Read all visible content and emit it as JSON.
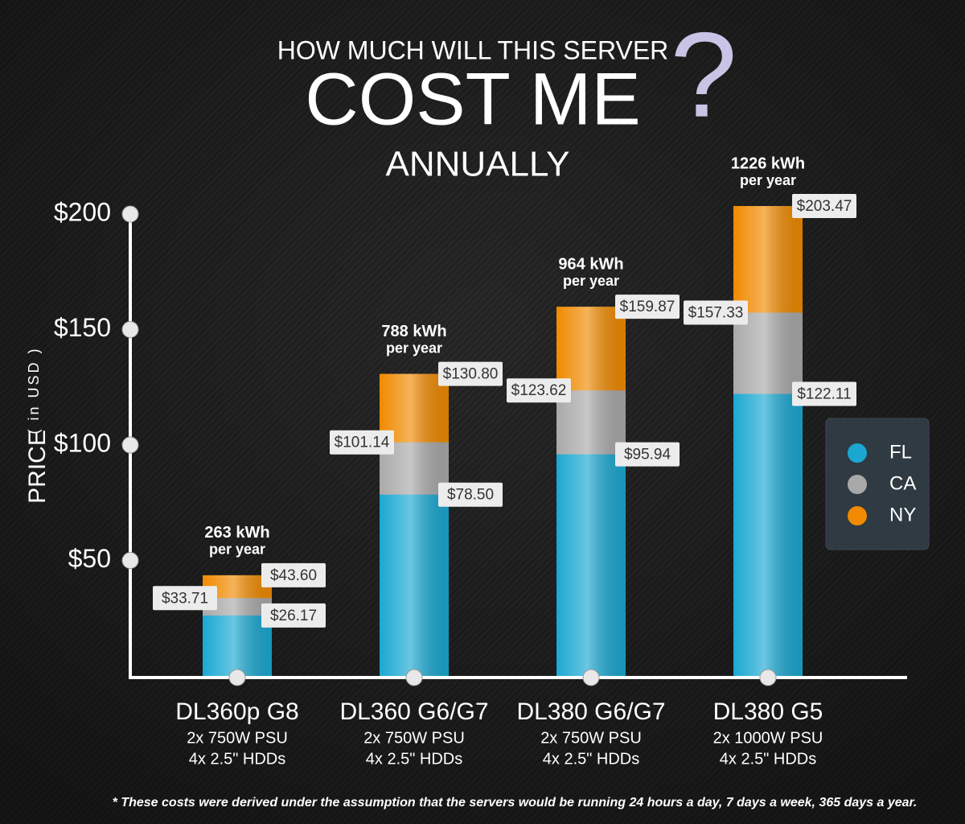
{
  "chart_data": {
    "type": "bar",
    "title_lines": [
      "HOW MUCH WILL THIS SERVER",
      "COST ME",
      "?",
      "ANNUALLY"
    ],
    "y_label": [
      "PRICE",
      "( in USD )"
    ],
    "categories": [
      "DL360p G8",
      "DL360 G6/G7",
      "DL380 G6/G7",
      "DL380 G5"
    ],
    "category_details": [
      [
        "2x 750W PSU",
        "4x 2.5\" HDDs"
      ],
      [
        "2x 750W PSU",
        "4x 2.5\" HDDs"
      ],
      [
        "2x 750W PSU",
        "4x 2.5\" HDDs"
      ],
      [
        "2x 1000W PSU",
        "4x 2.5\" HDDs"
      ]
    ],
    "annotations": [
      [
        "263 kWh",
        "per year"
      ],
      [
        "788 kWh",
        "per year"
      ],
      [
        "964 kWh",
        "per year"
      ],
      [
        "1226 kWh",
        "per year"
      ]
    ],
    "series": [
      {
        "name": "FL",
        "color": "#1aa8d2",
        "values": [
          26.17,
          78.5,
          95.94,
          122.11
        ],
        "value_labels": [
          "$26.17",
          "$78.50",
          "$95.94",
          "$122.11"
        ]
      },
      {
        "name": "CA",
        "color": "#a9a9a9",
        "values": [
          33.71,
          101.14,
          123.62,
          157.33
        ],
        "value_labels": [
          "$33.71",
          "$101.14",
          "$123.62",
          "$157.33"
        ]
      },
      {
        "name": "NY",
        "color": "#f08a00",
        "values": [
          43.6,
          130.8,
          159.87,
          203.47
        ],
        "value_labels": [
          "$43.60",
          "$130.80",
          "$159.87",
          "$203.47"
        ]
      }
    ],
    "ylim": [
      0,
      200
    ],
    "yticks": [
      {
        "value": 50,
        "label": "$50"
      },
      {
        "value": 100,
        "label": "$100"
      },
      {
        "value": 150,
        "label": "$150"
      },
      {
        "value": 200,
        "label": "$200"
      }
    ],
    "legend": "right",
    "footnote": "* These costs were derived under the assumption that the servers would be running 24 hours a day, 7 days a week, 365 days a year."
  }
}
